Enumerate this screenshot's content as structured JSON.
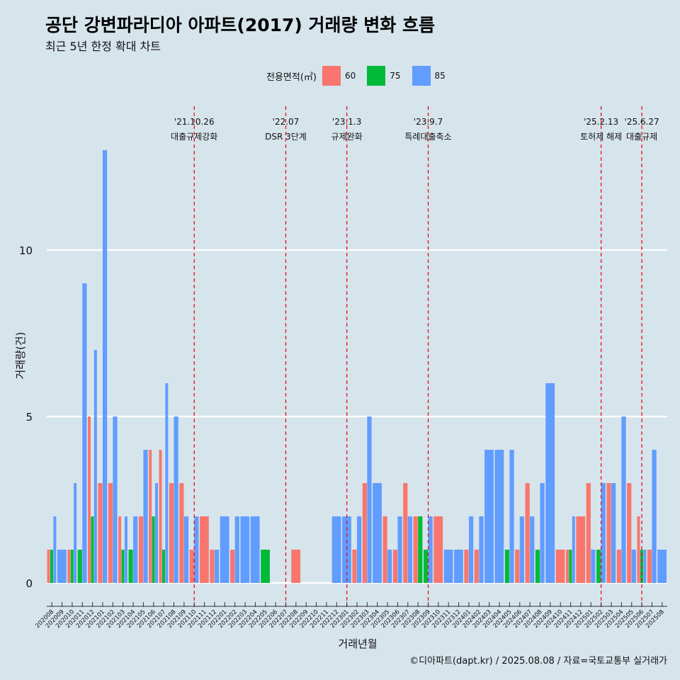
{
  "title": "공단 강변파라디아 아파트(2017) 거래량 변화 흐름",
  "subtitle": "최근 5년 한정 확대 차트",
  "caption": "©디아파트(dapt.kr) / 2025.08.08 / 자료=국토교통부 실거래가",
  "legend": {
    "title": "전용면적(㎡)",
    "items": [
      {
        "label": "60",
        "color": "#f8766d"
      },
      {
        "label": "75",
        "color": "#00ba38"
      },
      {
        "label": "85",
        "color": "#619cff"
      }
    ]
  },
  "chart_data": {
    "type": "bar",
    "xlabel": "거래년월",
    "ylabel": "거래량(건)",
    "ylim": [
      0,
      14
    ],
    "yticks": [
      0,
      5,
      10
    ],
    "categories": [
      "202008",
      "202009",
      "202010",
      "202011",
      "202012",
      "202101",
      "202102",
      "202103",
      "202104",
      "202105",
      "202106",
      "202107",
      "202108",
      "202109",
      "202110",
      "202111",
      "202112",
      "202201",
      "202202",
      "202203",
      "202204",
      "202205",
      "202206",
      "202207",
      "202208",
      "202209",
      "202210",
      "202211",
      "202212",
      "202301",
      "202302",
      "202303",
      "202304",
      "202305",
      "202306",
      "202307",
      "202308",
      "202309",
      "202310",
      "202311",
      "202312",
      "202401",
      "202402",
      "202403",
      "202404",
      "202405",
      "202406",
      "202407",
      "202408",
      "202409",
      "202410",
      "202411",
      "202412",
      "202501",
      "202502",
      "202503",
      "202504",
      "202505",
      "202506",
      "202507",
      "202508"
    ],
    "series": [
      {
        "name": "60",
        "color": "#f8766d",
        "values": [
          1,
          0,
          1,
          0,
          5,
          3,
          3,
          2,
          0,
          2,
          4,
          4,
          3,
          3,
          1,
          2,
          1,
          0,
          1,
          0,
          0,
          0,
          0,
          0,
          1,
          0,
          0,
          0,
          0,
          0,
          1,
          3,
          0,
          2,
          1,
          3,
          2,
          0,
          2,
          0,
          0,
          1,
          1,
          0,
          0,
          0,
          1,
          3,
          0,
          0,
          1,
          1,
          2,
          3,
          0,
          3,
          1,
          3,
          2,
          1,
          0
        ]
      },
      {
        "name": "75",
        "color": "#00ba38",
        "values": [
          1,
          0,
          1,
          1,
          2,
          0,
          0,
          1,
          1,
          0,
          2,
          1,
          0,
          0,
          0,
          0,
          0,
          0,
          0,
          0,
          0,
          1,
          0,
          0,
          0,
          0,
          0,
          0,
          0,
          0,
          0,
          0,
          0,
          0,
          0,
          0,
          2,
          1,
          0,
          0,
          0,
          0,
          0,
          0,
          0,
          1,
          0,
          0,
          1,
          0,
          0,
          1,
          0,
          0,
          1,
          0,
          0,
          0,
          1,
          0,
          0
        ]
      },
      {
        "name": "85",
        "color": "#619cff",
        "values": [
          2,
          1,
          3,
          9,
          7,
          13,
          5,
          2,
          2,
          4,
          3,
          6,
          5,
          2,
          2,
          0,
          1,
          2,
          2,
          2,
          2,
          0,
          0,
          0,
          0,
          0,
          0,
          0,
          2,
          2,
          2,
          5,
          3,
          1,
          2,
          2,
          0,
          2,
          0,
          1,
          1,
          2,
          2,
          4,
          4,
          4,
          2,
          2,
          3,
          6,
          0,
          2,
          0,
          1,
          3,
          3,
          5,
          1,
          1,
          4,
          1
        ]
      }
    ],
    "events": [
      {
        "category": "202110",
        "date": "'21.10.26",
        "label": "대출규제강화"
      },
      {
        "category": "202207",
        "date": "'22.07",
        "label": "DSR 3단계"
      },
      {
        "category": "202301",
        "date": "'23.1.3",
        "label": "규제완화"
      },
      {
        "category": "202309",
        "date": "'23.9.7",
        "label": "특례대출축소"
      },
      {
        "category": "202502",
        "date": "'25.2.13",
        "label": "토허제 해제"
      },
      {
        "category": "202506",
        "date": "'25.6.27",
        "label": "대출규제"
      }
    ],
    "grid": true,
    "legend_position": "top"
  }
}
